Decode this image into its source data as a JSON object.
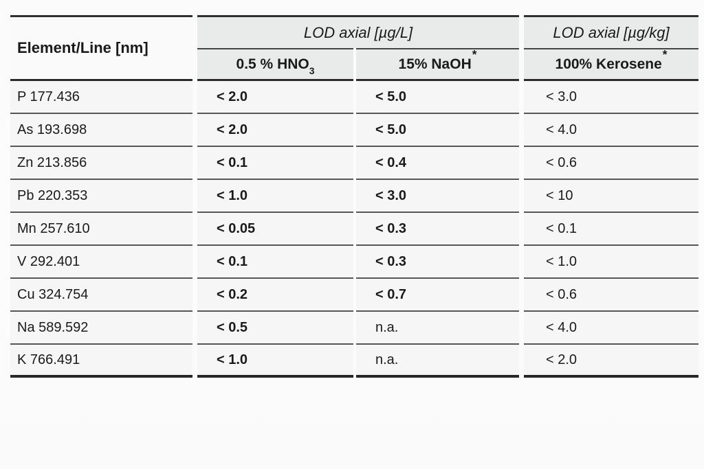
{
  "table": {
    "row_header_label": "Element/Line [nm]",
    "groups": [
      {
        "label": "LOD axial [µg/L]"
      },
      {
        "label": "LOD axial [µg/kg]"
      }
    ],
    "subheaders": [
      {
        "main": "0.5 % HNO",
        "sub": "3",
        "sup": ""
      },
      {
        "main": "15% NaOH",
        "sub": "",
        "sup": "*"
      },
      {
        "main": "100% Kerosene",
        "sub": "",
        "sup": "*"
      }
    ],
    "rows": [
      {
        "element": "P 177.436",
        "hno3": "< 2.0",
        "naoh": "< 5.0",
        "kerosene": "< 3.0"
      },
      {
        "element": "As 193.698",
        "hno3": "< 2.0",
        "naoh": "< 5.0",
        "kerosene": "< 4.0"
      },
      {
        "element": "Zn 213.856",
        "hno3": "< 0.1",
        "naoh": "< 0.4",
        "kerosene": "< 0.6"
      },
      {
        "element": "Pb 220.353",
        "hno3": "< 1.0",
        "naoh": "< 3.0",
        "kerosene": "< 10"
      },
      {
        "element": "Mn 257.610",
        "hno3": "< 0.05",
        "naoh": "< 0.3",
        "kerosene": "< 0.1"
      },
      {
        "element": "V 292.401",
        "hno3": "< 0.1",
        "naoh": "< 0.3",
        "kerosene": "< 1.0"
      },
      {
        "element": "Cu 324.754",
        "hno3": "< 0.2",
        "naoh": "< 0.7",
        "kerosene": "< 0.6"
      },
      {
        "element": "Na 589.592",
        "hno3": "< 0.5",
        "naoh": "n.a.",
        "kerosene": "< 4.0"
      },
      {
        "element": "K 766.491",
        "hno3": "< 1.0",
        "naoh": "n.a.",
        "kerosene": "< 2.0"
      }
    ]
  },
  "chart_data": {
    "type": "table",
    "columns": [
      "Element/Line [nm]",
      "LOD axial [µg/L] 0.5 % HNO3",
      "LOD axial [µg/L] 15% NaOH*",
      "LOD axial [µg/kg] 100% Kerosene*"
    ],
    "rows": [
      [
        "P 177.436",
        "< 2.0",
        "< 5.0",
        "< 3.0"
      ],
      [
        "As 193.698",
        "< 2.0",
        "< 5.0",
        "< 4.0"
      ],
      [
        "Zn 213.856",
        "< 0.1",
        "< 0.4",
        "< 0.6"
      ],
      [
        "Pb 220.353",
        "< 1.0",
        "< 3.0",
        "< 10"
      ],
      [
        "Mn 257.610",
        "< 0.05",
        "< 0.3",
        "< 0.1"
      ],
      [
        "V 292.401",
        "< 0.1",
        "< 0.3",
        "< 1.0"
      ],
      [
        "Cu 324.754",
        "< 0.2",
        "< 0.7",
        "< 0.6"
      ],
      [
        "Na 589.592",
        "< 0.5",
        "n.a.",
        "< 4.0"
      ],
      [
        "K 766.491",
        "< 1.0",
        "n.a.",
        "< 2.0"
      ]
    ]
  }
}
